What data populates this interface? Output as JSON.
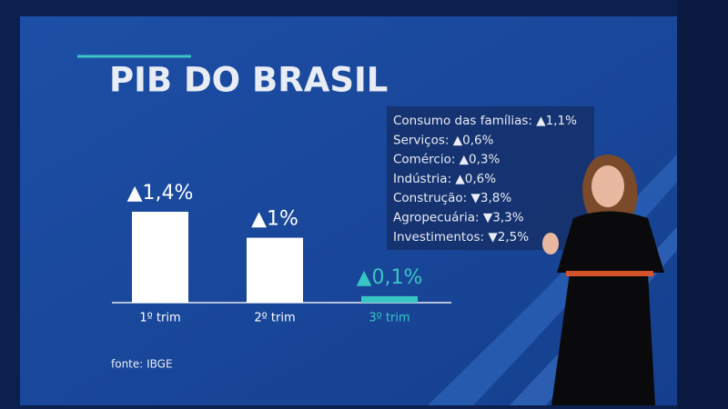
{
  "chart_data": {
    "type": "bar",
    "title": "PIB DO BRASIL",
    "categories": [
      "1º trim",
      "2º trim",
      "3º trim"
    ],
    "values": [
      1.4,
      1,
      0.1
    ],
    "value_labels": [
      "▲1,4%",
      "▲1%",
      "▲0,1%"
    ],
    "colors": [
      "#ffffff",
      "#ffffff",
      "#38c6c4"
    ],
    "source": "fonte: IBGE",
    "notes": [
      "Consumo das famílias: ▲1,1%",
      "Serviços: ▲0,6%",
      "Comércio: ▲0,3%",
      "Indústria: ▲0,6%",
      "Construção: ▼3,8%",
      "Agropecuária: ▼3,3%",
      "Investimentos: ▼2,5%"
    ]
  }
}
